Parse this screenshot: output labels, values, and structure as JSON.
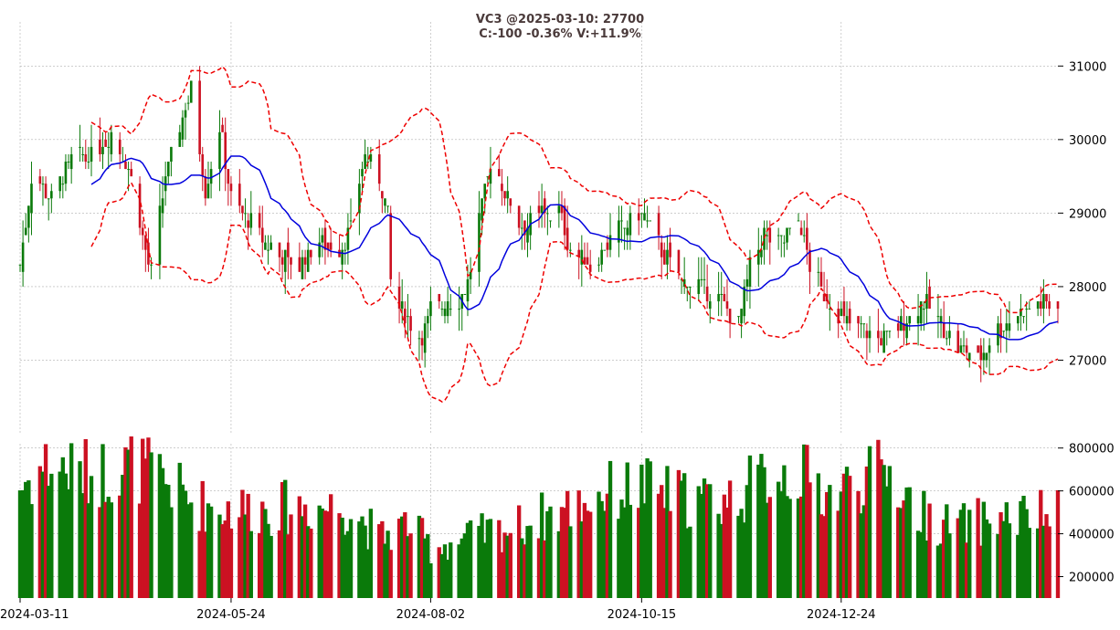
{
  "chart_data": {
    "type": "candlestick",
    "title_line1": "VC3 @2025-03-10: 27700",
    "title_line2": "C:-100 -0.36% V:+11.9%",
    "x_tick_labels": [
      "2024-03-11",
      "2024-05-24",
      "2024-08-02",
      "2024-10-15",
      "2024-12-24"
    ],
    "x_tick_dates": [
      "2024-03-11",
      "2024-05-24",
      "2024-08-02",
      "2024-10-15",
      "2024-12-24"
    ],
    "x_range": [
      "2024-03-11",
      "2025-03-10"
    ],
    "price_axis": {
      "range": [
        26000,
        31600
      ],
      "ticks": [
        27000,
        28000,
        29000,
        30000,
        31000
      ],
      "tick_labels": [
        "27000",
        "28000",
        "29000",
        "30000",
        "31000"
      ]
    },
    "volume_axis": {
      "range": [
        100000,
        820000
      ],
      "ticks": [
        200000,
        400000,
        600000,
        800000
      ],
      "tick_labels": [
        "200000",
        "400000",
        "600000",
        "800000"
      ]
    },
    "grid": true,
    "colors": {
      "up": "#0a7a0a",
      "down": "#cc1122",
      "ma": "#0000dd",
      "bands": "#ee0000",
      "grid": "#b0b0b0",
      "title": "#4a3a3a"
    },
    "anchors": {
      "close": [
        [
          "2024-03-11",
          28300
        ],
        [
          "2024-03-15",
          29500
        ],
        [
          "2024-03-22",
          29200
        ],
        [
          "2024-03-29",
          29700
        ],
        [
          "2024-04-05",
          29800
        ],
        [
          "2024-04-12",
          30100
        ],
        [
          "2024-04-19",
          29500
        ],
        [
          "2024-04-24",
          28500
        ],
        [
          "2024-04-26",
          28200
        ],
        [
          "2024-05-01",
          29500
        ],
        [
          "2024-05-06",
          30200
        ],
        [
          "2024-05-10",
          30700
        ],
        [
          "2024-05-15",
          29300
        ],
        [
          "2024-05-20",
          30200
        ],
        [
          "2024-05-24",
          29200
        ],
        [
          "2024-06-01",
          28800
        ],
        [
          "2024-06-10",
          28400
        ],
        [
          "2024-06-17",
          28300
        ],
        [
          "2024-06-24",
          28600
        ],
        [
          "2024-07-01",
          28500
        ],
        [
          "2024-07-05",
          28800
        ],
        [
          "2024-07-10",
          29800
        ],
        [
          "2024-07-15",
          29500
        ],
        [
          "2024-07-18",
          29000
        ],
        [
          "2024-07-20",
          27200
        ],
        [
          "2024-07-22",
          27700
        ],
        [
          "2024-07-26",
          27500
        ],
        [
          "2024-07-30",
          27300
        ],
        [
          "2024-08-02",
          27700
        ],
        [
          "2024-08-08",
          27800
        ],
        [
          "2024-08-12",
          27800
        ],
        [
          "2024-08-16",
          28200
        ],
        [
          "2024-08-19",
          28900
        ],
        [
          "2024-08-23",
          29700
        ],
        [
          "2024-08-28",
          29300
        ],
        [
          "2024-09-03",
          28800
        ],
        [
          "2024-09-10",
          29000
        ],
        [
          "2024-09-16",
          29000
        ],
        [
          "2024-09-20",
          28500
        ],
        [
          "2024-09-27",
          28300
        ],
        [
          "2024-10-01",
          28500
        ],
        [
          "2024-10-08",
          28800
        ],
        [
          "2024-10-15",
          29000
        ],
        [
          "2024-10-22",
          28500
        ],
        [
          "2024-10-29",
          28100
        ],
        [
          "2024-11-05",
          28000
        ],
        [
          "2024-11-12",
          27800
        ],
        [
          "2024-11-18",
          27500
        ],
        [
          "2024-11-22",
          28300
        ],
        [
          "2024-11-27",
          28700
        ],
        [
          "2024-12-03",
          28600
        ],
        [
          "2024-12-09",
          28900
        ],
        [
          "2024-12-13",
          28300
        ],
        [
          "2024-12-18",
          27900
        ],
        [
          "2024-12-24",
          27600
        ],
        [
          "2025-01-01",
          27400
        ],
        [
          "2025-01-08",
          27300
        ],
        [
          "2025-01-15",
          27500
        ],
        [
          "2025-01-22",
          27800
        ],
        [
          "2025-01-28",
          27500
        ],
        [
          "2025-02-03",
          27200
        ],
        [
          "2025-02-10",
          27000
        ],
        [
          "2025-02-17",
          27400
        ],
        [
          "2025-02-24",
          27600
        ],
        [
          "2025-03-03",
          27800
        ],
        [
          "2025-03-10",
          27700
        ]
      ],
      "volume": [
        [
          "2024-03-11",
          620000
        ],
        [
          "2024-03-20",
          720000
        ],
        [
          "2024-04-05",
          680000
        ],
        [
          "2024-04-20",
          720000
        ],
        [
          "2024-05-01",
          650000
        ],
        [
          "2024-05-10",
          550000
        ],
        [
          "2024-05-20",
          520000
        ],
        [
          "2024-06-10",
          520000
        ],
        [
          "2024-06-20",
          530000
        ],
        [
          "2024-07-05",
          520000
        ],
        [
          "2024-07-15",
          380000
        ],
        [
          "2024-07-25",
          450000
        ],
        [
          "2024-08-02",
          340000
        ],
        [
          "2024-08-10",
          360000
        ],
        [
          "2024-08-20",
          400000
        ],
        [
          "2024-09-01",
          430000
        ],
        [
          "2024-09-10",
          480000
        ],
        [
          "2024-09-20",
          520000
        ],
        [
          "2024-10-01",
          590000
        ],
        [
          "2024-10-15",
          620000
        ],
        [
          "2024-11-01",
          560000
        ],
        [
          "2024-11-15",
          560000
        ],
        [
          "2024-12-01",
          690000
        ],
        [
          "2024-12-10",
          680000
        ],
        [
          "2024-12-20",
          580000
        ],
        [
          "2025-01-01",
          660000
        ],
        [
          "2025-01-10",
          690000
        ],
        [
          "2025-01-20",
          500000
        ],
        [
          "2025-02-01",
          430000
        ],
        [
          "2025-02-15",
          470000
        ],
        [
          "2025-03-10",
          490000
        ]
      ]
    },
    "ma_period": 20,
    "band_width_stddev": 2
  }
}
